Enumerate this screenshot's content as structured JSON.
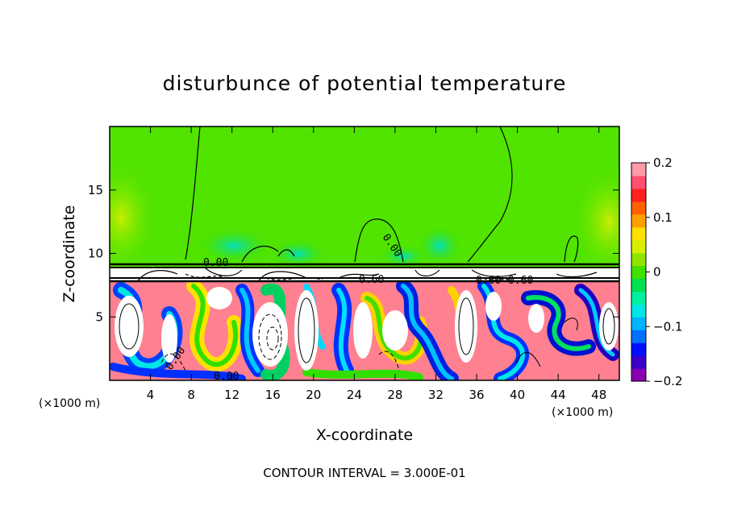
{
  "chart_data": {
    "type": "heatmap",
    "title": "disturbunce of potential temperature",
    "xlabel": "X-coordinate",
    "ylabel": "Z-coordinate",
    "x_unit": "(×1000 m)",
    "y_unit": "(×1000 m)",
    "xlim": [
      0,
      50
    ],
    "ylim": [
      0,
      20
    ],
    "x_ticks": [
      4,
      8,
      12,
      16,
      20,
      24,
      28,
      32,
      36,
      40,
      44,
      48
    ],
    "y_ticks": [
      5,
      10,
      15
    ],
    "colorbar": {
      "min": -0.2,
      "max": 0.2,
      "ticks": [
        0.2,
        0.1,
        0,
        -0.1,
        -0.2
      ],
      "tick_labels": [
        "0.2",
        "0.1",
        "0",
        "−0.1",
        "−0.2"
      ],
      "colors": [
        "#8a00b0",
        "#3a00c8",
        "#0010ff",
        "#0070ff",
        "#00b4ff",
        "#00e6e6",
        "#00f0a0",
        "#00e050",
        "#40e000",
        "#90e400",
        "#d8f000",
        "#ffe000",
        "#ffa000",
        "#ff6000",
        "#ff2020",
        "#ff5070",
        "#ff9aa8"
      ]
    },
    "contour_interval_label": "CONTOUR INTERVAL = 3.000E-01",
    "contour_labels": [
      "0.00",
      "0.00",
      "0.00",
      "0.00",
      "0.60",
      "0.60",
      "0.60"
    ],
    "inversion_layer_height_km": 9.0,
    "upper_layer_value": 0.0
  }
}
